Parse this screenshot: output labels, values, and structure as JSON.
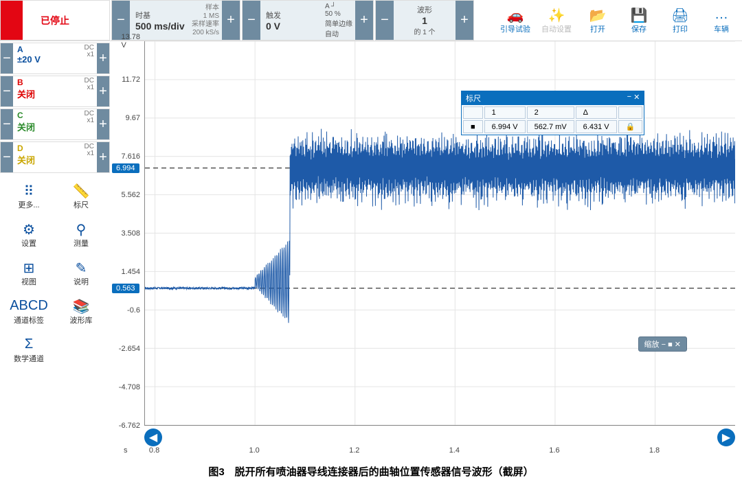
{
  "status": {
    "label": "已停止",
    "color": "#e30613"
  },
  "timebase": {
    "label": "时基",
    "value": "500 ms/div",
    "extra": [
      [
        "样本",
        "1 MS"
      ],
      [
        "采样速率",
        "200 kS/s"
      ]
    ]
  },
  "trigger": {
    "label": "触发",
    "value": "0 V",
    "extra": [
      [
        "A ┘",
        ""
      ],
      [
        "50 %",
        ""
      ],
      [
        "简单边缘",
        ""
      ],
      [
        "自动",
        ""
      ]
    ]
  },
  "waveform": {
    "label": "波形",
    "value": "1",
    "sub": "的 1 个"
  },
  "topicons": [
    {
      "name": "guide",
      "label": "引导试验",
      "glyph": "🚗"
    },
    {
      "name": "autoset",
      "label": "自动设置",
      "glyph": "✨",
      "disabled": true
    },
    {
      "name": "open",
      "label": "打开",
      "glyph": "📂"
    },
    {
      "name": "save",
      "label": "保存",
      "glyph": "💾"
    },
    {
      "name": "print",
      "label": "打印",
      "glyph": "🖨"
    },
    {
      "name": "vehicle",
      "label": "车辆",
      "glyph": "…"
    }
  ],
  "channels": [
    {
      "id": "A",
      "value": "±20 V",
      "dc": "DC",
      "x": "x1",
      "on": true
    },
    {
      "id": "B",
      "value": "关闭",
      "dc": "DC",
      "x": "x1",
      "on": false
    },
    {
      "id": "C",
      "value": "关闭",
      "dc": "DC",
      "x": "x1",
      "on": false
    },
    {
      "id": "D",
      "value": "关闭",
      "dc": "DC",
      "x": "x1",
      "on": false
    }
  ],
  "tools": [
    {
      "name": "more",
      "label": "更多...",
      "glyph": "⠿"
    },
    {
      "name": "ruler",
      "label": "标尺",
      "glyph": "📏"
    },
    {
      "name": "settings",
      "label": "设置",
      "glyph": "⚙"
    },
    {
      "name": "measure",
      "label": "测量",
      "glyph": "⚲"
    },
    {
      "name": "view",
      "label": "视图",
      "glyph": "⊞"
    },
    {
      "name": "help",
      "label": "说明",
      "glyph": "✎"
    },
    {
      "name": "chlabel",
      "label": "通道标签",
      "glyph": "ABCD"
    },
    {
      "name": "wavelib",
      "label": "波形库",
      "glyph": "📚"
    },
    {
      "name": "math",
      "label": "数学通道",
      "glyph": "Σ"
    }
  ],
  "ruler": {
    "title": "标尺",
    "headers": [
      "",
      "1",
      "2",
      "Δ",
      ""
    ],
    "row": [
      "■",
      "6.994 V",
      "562.7 mV",
      "6.431 V",
      "🔒"
    ]
  },
  "zoom_popup": "缩放 − ■ ✕",
  "axes": {
    "yunit": "V",
    "ylim": [
      -6.762,
      13.78
    ],
    "yticks": [
      13.78,
      11.72,
      9.67,
      7.616,
      5.562,
      3.508,
      1.454,
      -0.6,
      -2.654,
      -4.708,
      -6.762
    ],
    "xunit": "s",
    "xticks": [
      0.8,
      1.0,
      1.2,
      1.4,
      1.6,
      1.8
    ],
    "xlim": [
      0.78,
      1.96
    ]
  },
  "cursors": {
    "c1": 6.994,
    "c2": 0.563
  },
  "signal": {
    "color": "#1e5aa8",
    "baseline_start": 0.563,
    "phase1_end_x": 1.0,
    "phase2_start_x": 1.0,
    "phase2_end_x": 1.07,
    "phase2_mean": 0.9,
    "phase2_amp_start": 0.25,
    "phase2_amp_end": 2.3,
    "phase2_freq": 28,
    "phase3_start_x": 1.07,
    "phase3_mean": 6.994,
    "phase3_amp": 1.5,
    "phase3_amp_jitter": 0.9,
    "phase3_freq": 130
  },
  "caption": "图3　脱开所有喷油器导线连接器后的曲轴位置传感器信号波形（截屏）"
}
